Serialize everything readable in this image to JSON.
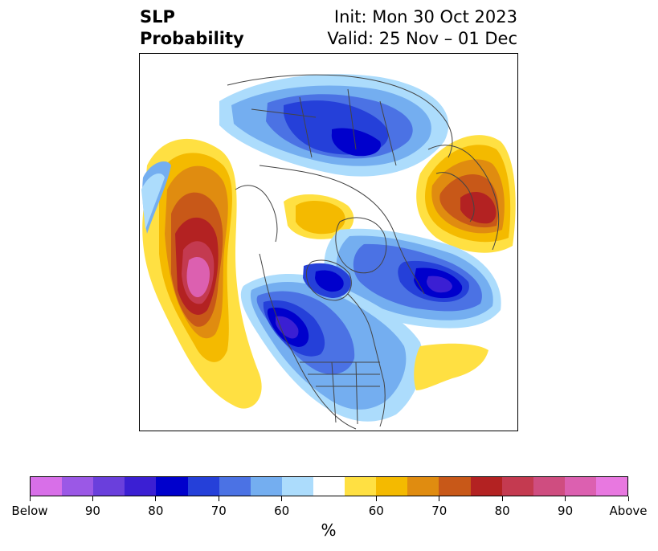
{
  "title": {
    "left_line1": "SLP",
    "left_line2": "Probability",
    "right_line1": "Init: Mon 30 Oct 2023",
    "right_line2": "Valid: 25 Nov – 01 Dec"
  },
  "map": {
    "projection": "north-polar-stereographic",
    "region": "Northern Hemisphere / North America",
    "fill_colors_below": [
      "#d86fe8",
      "#9b58e6",
      "#6a3fdc",
      "#3b1fd3",
      "#0000cc",
      "#2540d9",
      "#4b72e4",
      "#74aef0",
      "#acdcfc"
    ],
    "neutral_color": "#ffffff",
    "fill_colors_above": [
      "#ffe042",
      "#f4ba00",
      "#e08c10",
      "#c85818",
      "#b32222",
      "#c43a50",
      "#cf4d80",
      "#dc60b0",
      "#e878e0"
    ]
  },
  "colorbar": {
    "segment_colors": [
      "#d86fe8",
      "#9b58e6",
      "#6a3fdc",
      "#3b1fd3",
      "#0000cc",
      "#2540d9",
      "#4b72e4",
      "#74aef0",
      "#acdcfc",
      "#ffffff",
      "#ffe042",
      "#f4ba00",
      "#e08c10",
      "#c85818",
      "#b32222",
      "#c43a50",
      "#cf4d80",
      "#dc60b0",
      "#e878e0"
    ],
    "tick_labels": [
      "Below",
      "90",
      "80",
      "70",
      "60",
      "60",
      "70",
      "80",
      "90",
      "Above"
    ],
    "unit_label": "%"
  }
}
